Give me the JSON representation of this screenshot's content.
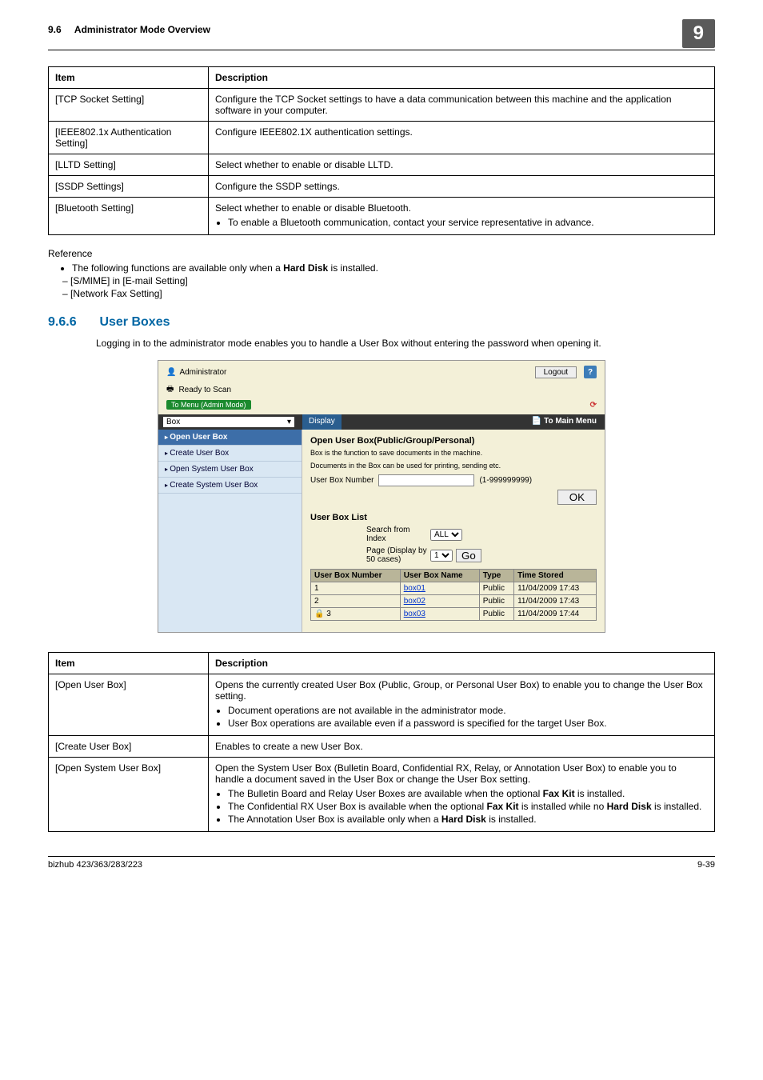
{
  "header": {
    "section_no": "9.6",
    "section_title": "Administrator Mode Overview",
    "chapter_tab": "9"
  },
  "table1": {
    "head_item": "Item",
    "head_desc": "Description",
    "rows": [
      {
        "item": "[TCP Socket Setting]",
        "desc": "Configure the TCP Socket settings to have a data communication between this machine and the application software in your computer."
      },
      {
        "item": "[IEEE802.1x Authentication Setting]",
        "desc": "Configure IEEE802.1X authentication settings."
      },
      {
        "item": "[LLTD Setting]",
        "desc": "Select whether to enable or disable LLTD."
      },
      {
        "item": "[SSDP Settings]",
        "desc": "Configure the SSDP settings."
      },
      {
        "item": "[Bluetooth Setting]",
        "desc_lead": "Select whether to enable or disable Bluetooth.",
        "bullets": [
          "To enable a Bluetooth communication, contact your service representative in advance."
        ]
      }
    ]
  },
  "reference": {
    "title": "Reference",
    "lines": [
      {
        "kind": "bullet",
        "prefix": "The following functions are available only when a ",
        "bold": "Hard Disk",
        "suffix": " is installed."
      },
      {
        "kind": "dash",
        "text": "[S/MIME] in [E-mail Setting]"
      },
      {
        "kind": "dash",
        "text": "[Network Fax Setting]"
      }
    ]
  },
  "section": {
    "num": "9.6.6",
    "title": "User Boxes",
    "body": "Logging in to the administrator mode enables you to handle a User Box without entering the password when opening it."
  },
  "screenshot": {
    "admin_label": "Administrator",
    "logout": "Logout",
    "ready": "Ready to Scan",
    "to_menu_admin": "To Menu (Admin Mode)",
    "box_select_label": "Box",
    "display_btn": "Display",
    "to_main_menu": "To Main Menu",
    "side": {
      "items": [
        {
          "label": "Open User Box",
          "sel": true
        },
        {
          "label": "Create User Box"
        },
        {
          "label": "Open System User Box"
        },
        {
          "label": "Create System User Box"
        }
      ]
    },
    "main": {
      "heading": "Open User Box(Public/Group/Personal)",
      "note1": "Box is the function to save documents in the machine.",
      "note2": "Documents in the Box can be used for printing, sending etc.",
      "userboxnum_label": "User Box Number",
      "userboxnum_hint": "(1-999999999)",
      "ok": "OK",
      "list_heading": "User Box List",
      "search_from_index": "Search from Index",
      "search_sel_all": "ALL",
      "page_display": "Page (Display by 50 cases)",
      "page_sel": "1",
      "go": "Go",
      "table": {
        "cols": [
          "User Box Number",
          "User Box Name",
          "Type",
          "Time Stored"
        ],
        "rows": [
          {
            "num": "1",
            "name": "box01",
            "type": "Public",
            "time": "11/04/2009 17:43"
          },
          {
            "num": "2",
            "name": "box02",
            "type": "Public",
            "time": "11/04/2009 17:43"
          },
          {
            "num": "3",
            "name": "box03",
            "type": "Public",
            "time": "11/04/2009 17:44",
            "locked": true
          }
        ]
      }
    }
  },
  "table2": {
    "head_item": "Item",
    "head_desc": "Description",
    "rows": [
      {
        "item": "[Open User Box]",
        "desc_lead": "Opens the currently created User Box (Public, Group, or Personal User Box) to enable you to change the User Box setting.",
        "bullets": [
          "Document operations are not available in the administrator mode.",
          "User Box operations are available even if a password is specified for the target User Box."
        ]
      },
      {
        "item": "[Create User Box]",
        "desc_lead": "Enables to create a new User Box."
      },
      {
        "item": "[Open System User Box]",
        "desc_lead": "Open the System User Box (Bulletin Board, Confidential RX, Relay, or Annotation User Box) to enable you to handle a document saved in the User Box or change the User Box setting.",
        "bullets_html": [
          "The Bulletin Board and Relay User Boxes are available when the optional <b>Fax Kit</b> is installed.",
          "The Confidential RX User Box is available when the optional <b>Fax Kit</b> is installed while no <b>Hard Disk</b> is installed.",
          "The Annotation User Box is available only when a <b>Hard Disk</b> is installed."
        ]
      }
    ]
  },
  "footer": {
    "left": "bizhub 423/363/283/223",
    "right": "9-39"
  },
  "colors": {
    "heading": "#0066a4",
    "tab_bg": "#5a5a5a",
    "side_sel": "#3d6ea8",
    "side_bg": "#d9e7f3",
    "scr_bg": "#f3f0d8",
    "th_bg": "#b9b599"
  }
}
